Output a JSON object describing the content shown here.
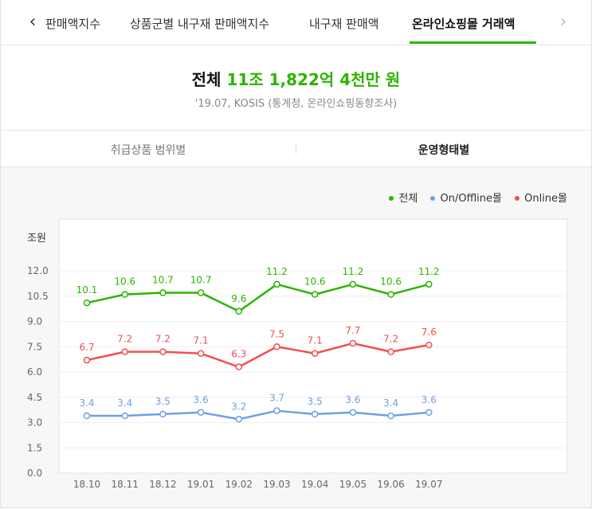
{
  "tabs": {
    "prev_icon": "chevron-left-icon",
    "next_icon": "chevron-right-icon",
    "items": [
      {
        "label": "판매액지수"
      },
      {
        "label": "상품군별 내구재 판매액지수"
      },
      {
        "label": "내구재 판매액"
      },
      {
        "label": "온라인쇼핑몰 거래액"
      }
    ],
    "active_index": 3
  },
  "summary": {
    "total_label": "전체",
    "total_value": "11조 1,822억 4천만 원",
    "source": "'19.07, KOSIS (통계청, 온라인쇼핑동향조사)"
  },
  "subtabs": [
    {
      "label": "취급상품 범위별"
    },
    {
      "label": "운영형태별"
    }
  ],
  "colors": {
    "accent": "#2db400",
    "online": "#f05050",
    "onoffline": "#6f9fe6"
  },
  "chart_data": {
    "type": "line",
    "unit_label": "조원",
    "categories": [
      "18.10",
      "18.11",
      "18.12",
      "19.01",
      "19.02",
      "19.03",
      "19.04",
      "19.05",
      "19.06",
      "19.07"
    ],
    "yticks": [
      "0.0",
      "1.5",
      "3.0",
      "4.5",
      "6.0",
      "7.5",
      "9.0",
      "10.5",
      "12.0"
    ],
    "ylim": [
      0,
      12
    ],
    "legend_position": "top-right",
    "series": [
      {
        "name": "전체",
        "color": "#2db400",
        "values": [
          10.1,
          10.6,
          10.7,
          10.7,
          9.6,
          11.2,
          10.6,
          11.2,
          10.6,
          11.2
        ]
      },
      {
        "name": "On/Offline몰",
        "color": "#6f9fe6",
        "values": [
          3.4,
          3.4,
          3.5,
          3.6,
          3.2,
          3.7,
          3.5,
          3.6,
          3.4,
          3.6
        ]
      },
      {
        "name": "Online몰",
        "color": "#f05050",
        "values": [
          6.7,
          7.2,
          7.2,
          7.1,
          6.3,
          7.5,
          7.1,
          7.7,
          7.2,
          7.6
        ]
      }
    ]
  }
}
